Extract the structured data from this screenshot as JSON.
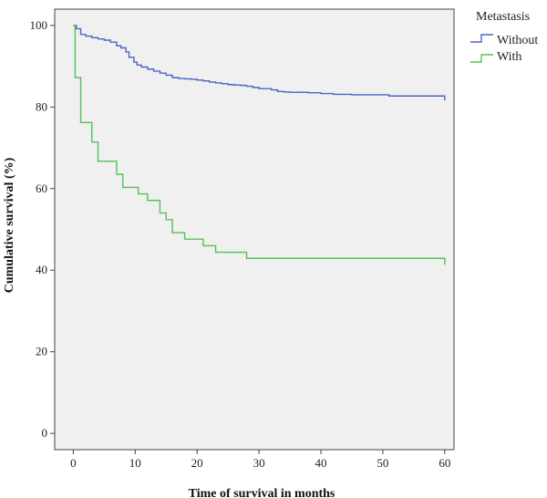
{
  "chart_data": {
    "type": "line",
    "step": true,
    "title": "",
    "xlabel": "Time of survival in months",
    "ylabel": "Cumulative survival (%)",
    "xlim": [
      -3,
      61.5
    ],
    "ylim": [
      -4,
      104
    ],
    "xticks": [
      0,
      10,
      20,
      30,
      40,
      50,
      60
    ],
    "yticks": [
      0,
      20,
      40,
      60,
      80,
      100
    ],
    "xtick_labels": [
      "0",
      "10",
      "20",
      "30",
      "40",
      "50",
      "60"
    ],
    "ytick_labels": [
      "0",
      "20",
      "40",
      "60",
      "80",
      "100"
    ],
    "grid": false,
    "legend": {
      "title": "Metastasis",
      "position": "top-right"
    },
    "series": [
      {
        "name": "Without",
        "color": "#4a64c8",
        "x": [
          0,
          0.5,
          1.2,
          2,
          3,
          4,
          5,
          6,
          7,
          7.7,
          8.5,
          9,
          9.8,
          10.3,
          11,
          12,
          13,
          14,
          15,
          16,
          17,
          18,
          19,
          20,
          21,
          22,
          23,
          24,
          25,
          26,
          27,
          28,
          29,
          30,
          32,
          33,
          34,
          35,
          38,
          40,
          42,
          45,
          51,
          55,
          60
        ],
        "y": [
          100,
          99.2,
          97.8,
          97.4,
          97.0,
          96.7,
          96.4,
          95.9,
          95.0,
          94.5,
          93.5,
          92.2,
          91.0,
          90.3,
          89.8,
          89.3,
          88.8,
          88.3,
          87.8,
          87.2,
          87.0,
          86.9,
          86.8,
          86.6,
          86.4,
          86.1,
          85.9,
          85.7,
          85.5,
          85.4,
          85.3,
          85.1,
          84.8,
          84.5,
          84.2,
          83.8,
          83.7,
          83.6,
          83.5,
          83.3,
          83.1,
          83.0,
          82.7,
          82.7,
          82.7
        ],
        "end_drop": 81.6
      },
      {
        "name": "With",
        "color": "#55c255",
        "x": [
          0,
          0.3,
          1.2,
          3,
          4,
          7,
          8,
          10.5,
          12,
          14,
          15,
          16,
          18,
          21,
          23,
          28,
          60
        ],
        "y": [
          100,
          87.2,
          76.2,
          71.4,
          66.7,
          63.5,
          60.3,
          58.7,
          57.1,
          54.0,
          52.4,
          49.2,
          47.6,
          46.0,
          44.4,
          42.9,
          42.9
        ],
        "end_drop": 41.3
      }
    ]
  }
}
